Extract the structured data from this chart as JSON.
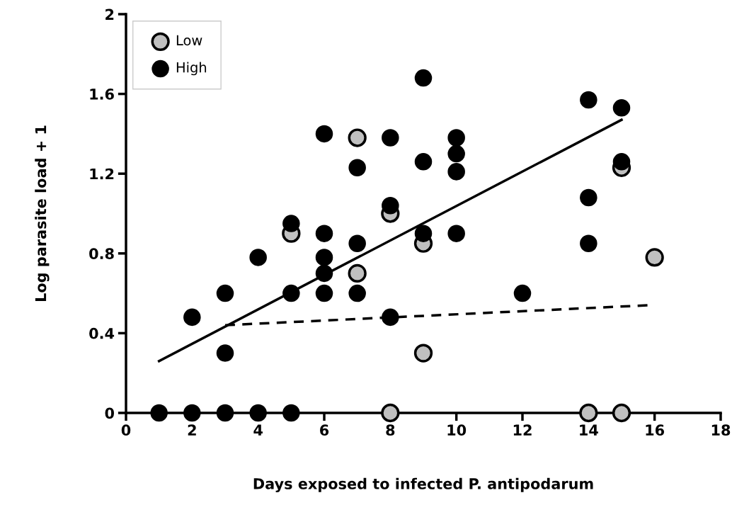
{
  "chart_data": {
    "type": "scatter",
    "xlabel": "Days exposed to infected P. antipodarum",
    "ylabel": "Log parasite load + 1",
    "xlim": [
      0,
      18
    ],
    "xticks": [
      0,
      2,
      4,
      6,
      8,
      10,
      12,
      14,
      16,
      18
    ],
    "ylim": [
      0,
      2
    ],
    "yticks": [
      0,
      0.4,
      0.8,
      1.2,
      1.6,
      2
    ],
    "grid": false,
    "legend": "top left",
    "series": [
      {
        "name": "Low",
        "marker": "circle",
        "color": "#c0c0c0",
        "x": [
          7,
          5,
          8,
          9,
          7,
          9,
          15,
          16,
          8,
          14,
          15
        ],
        "values": [
          1.38,
          0.9,
          1.0,
          0.85,
          0.7,
          0.3,
          1.23,
          0.78,
          0,
          0,
          0
        ]
      },
      {
        "name": "High",
        "marker": "circle",
        "color": "#000000",
        "x": [
          1,
          2,
          3,
          4,
          5,
          2,
          3,
          3,
          4,
          5,
          5,
          6,
          6,
          6,
          6,
          6,
          7,
          7,
          7,
          8,
          8,
          8,
          9,
          9,
          9,
          10,
          10,
          10,
          10,
          12,
          14,
          14,
          14,
          15,
          15
        ],
        "values": [
          0,
          0,
          0,
          0,
          0,
          0.48,
          0.6,
          0.3,
          0.78,
          0.95,
          0.6,
          1.4,
          0.9,
          0.78,
          0.7,
          0.6,
          1.23,
          0.85,
          0.6,
          1.38,
          1.04,
          0.48,
          1.68,
          1.26,
          0.9,
          1.38,
          1.3,
          1.21,
          0.9,
          0.6,
          1.57,
          1.08,
          0.85,
          1.53,
          1.26
        ]
      },
      {
        "type": "line",
        "color": "#000000",
        "line_style": "solid",
        "x": [
          1,
          15
        ],
        "values": [
          0.26,
          1.47
        ]
      },
      {
        "type": "line",
        "color": "#000000",
        "line_style": "dashed",
        "x": [
          3,
          15.8
        ],
        "values": [
          0.44,
          0.54
        ]
      }
    ]
  }
}
